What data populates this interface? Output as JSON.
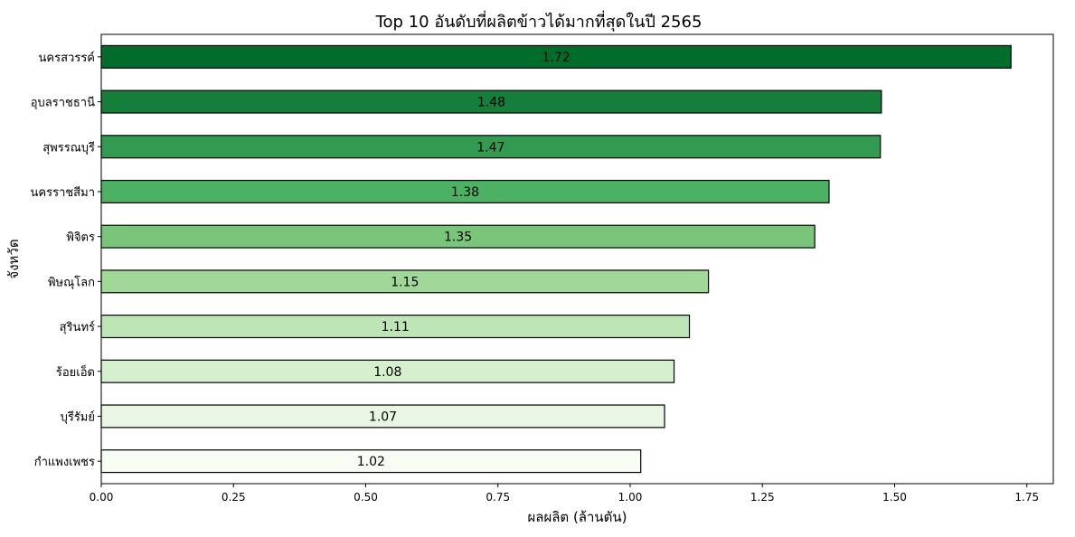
{
  "chart_data": {
    "type": "bar",
    "orientation": "horizontal",
    "title": "Top 10 อันดับที่ผลิตข้าวได้มากที่สุดในปี 2565",
    "xlabel": "ผลผลิต (ล้านตัน)",
    "ylabel": "จังหวัด",
    "xlim": [
      0,
      1.8
    ],
    "xticks": [
      0.0,
      0.25,
      0.5,
      0.75,
      1.0,
      1.25,
      1.5,
      1.75
    ],
    "xtick_labels": [
      "0.00",
      "0.25",
      "0.50",
      "0.75",
      "1.00",
      "1.25",
      "1.50",
      "1.75"
    ],
    "grid": false,
    "legend": "none",
    "categories": [
      "นครสวรรค์",
      "อุบลราชธานี",
      "สุพรรณบุรี",
      "นครราชสีมา",
      "พิจิตร",
      "พิษณุโลก",
      "สุรินทร์",
      "ร้อยเอ็ด",
      "บุรีรัมย์",
      "กำแพงเพชร"
    ],
    "values": [
      1.72,
      1.475,
      1.473,
      1.376,
      1.349,
      1.148,
      1.112,
      1.083,
      1.065,
      1.02
    ],
    "value_labels": [
      "1.72",
      "1.48",
      "1.47",
      "1.38",
      "1.35",
      "1.15",
      "1.11",
      "1.08",
      "1.07",
      "1.02"
    ],
    "colors": [
      "#006d2c",
      "#147e3a",
      "#329b51",
      "#4db163",
      "#79c67a",
      "#a0d898",
      "#bde5b5",
      "#d5efcf",
      "#e9f6e5",
      "#f7fcf5"
    ],
    "edge_color": "#000000"
  }
}
